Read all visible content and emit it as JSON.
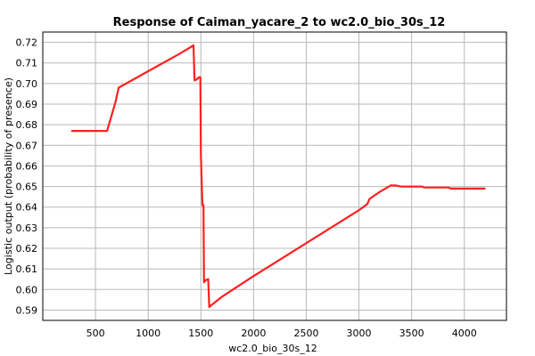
{
  "chart_data": {
    "type": "line",
    "title": "Response of Caiman_yacare_2 to wc2.0_bio_30s_12",
    "xlabel": "wc2.0_bio_30s_12",
    "ylabel": "Logistic output (probability of presence)",
    "xlim": [
      0,
      4400
    ],
    "ylim": [
      0.585,
      0.725
    ],
    "xticks": [
      500,
      1000,
      1500,
      2000,
      2500,
      3000,
      3500,
      4000
    ],
    "yticks": [
      0.59,
      0.6,
      0.61,
      0.62,
      0.63,
      0.64,
      0.65,
      0.66,
      0.67,
      0.68,
      0.69,
      0.7,
      0.71,
      0.72
    ],
    "xtick_labels": [
      "500",
      "1000",
      "1500",
      "2000",
      "2500",
      "3000",
      "3500",
      "4000"
    ],
    "ytick_labels": [
      "0.59",
      "0.60",
      "0.61",
      "0.62",
      "0.63",
      "0.64",
      "0.65",
      "0.66",
      "0.67",
      "0.68",
      "0.69",
      "0.70",
      "0.71",
      "0.72"
    ],
    "grid": true,
    "color": "#ff2020",
    "series": [
      {
        "x": [
          270,
          610,
          650,
          690,
          720,
          1000,
          1300,
          1430,
          1440,
          1460,
          1480,
          1495,
          1500,
          1515,
          1525,
          1530,
          1545,
          1570,
          1580,
          1590,
          1700,
          2000,
          2500,
          3000,
          3080,
          3100,
          3200,
          3300,
          3350,
          3400,
          3600,
          3620,
          3850,
          3870,
          4200
        ],
        "y": [
          0.677,
          0.677,
          0.684,
          0.691,
          0.698,
          0.706,
          0.7145,
          0.7185,
          0.7015,
          0.702,
          0.703,
          0.703,
          0.665,
          0.641,
          0.641,
          0.6035,
          0.6045,
          0.605,
          0.5915,
          0.592,
          0.5965,
          0.6065,
          0.6225,
          0.6385,
          0.6415,
          0.644,
          0.6475,
          0.6505,
          0.6505,
          0.65,
          0.65,
          0.6495,
          0.6495,
          0.649,
          0.649
        ]
      }
    ]
  }
}
